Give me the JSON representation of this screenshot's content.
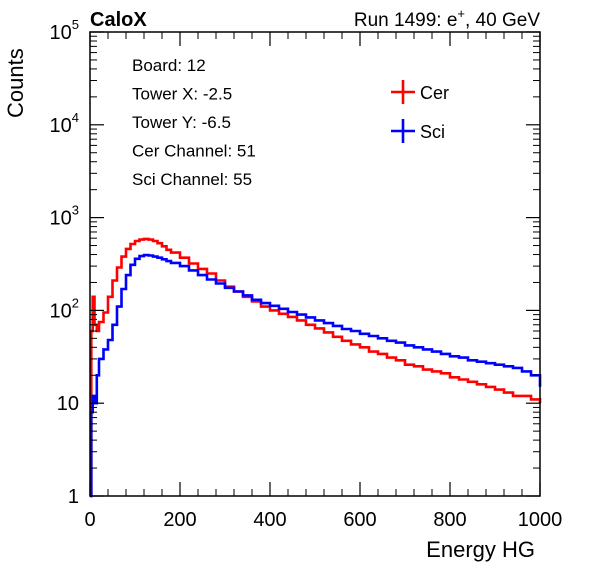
{
  "chart_data": {
    "type": "line",
    "title_left": "CaloX",
    "title_right_prefix": "Run 1499: e",
    "title_right_sup": "+",
    "title_right_suffix": ", 40 GeV",
    "xlabel": "Energy HG",
    "ylabel": "Counts",
    "xlim": [
      0,
      1000
    ],
    "ylim": [
      1,
      100000
    ],
    "yscale": "log",
    "grid": false,
    "x_ticks": [
      "0",
      "200",
      "400",
      "600",
      "800",
      "1000"
    ],
    "y_ticks": [
      {
        "base": "1",
        "exp": ""
      },
      {
        "base": "10",
        "exp": ""
      },
      {
        "base": "10",
        "exp": "2"
      },
      {
        "base": "10",
        "exp": "3"
      },
      {
        "base": "10",
        "exp": "4"
      },
      {
        "base": "10",
        "exp": "5"
      }
    ],
    "info_lines": [
      "Board: 12",
      "Tower X: -2.5",
      "Tower Y: -6.5",
      "Cer Channel: 51",
      "Sci Channel: 55"
    ],
    "legend_position": "top-right",
    "series": [
      {
        "name": "Cer",
        "color": "#ff0000",
        "x": [
          0,
          3,
          6,
          10,
          15,
          20,
          30,
          40,
          50,
          60,
          70,
          80,
          90,
          100,
          110,
          120,
          130,
          140,
          150,
          160,
          170,
          180,
          200,
          220,
          240,
          260,
          280,
          300,
          320,
          340,
          360,
          380,
          400,
          420,
          440,
          460,
          480,
          500,
          520,
          540,
          560,
          580,
          600,
          620,
          640,
          660,
          680,
          700,
          720,
          740,
          760,
          780,
          800,
          820,
          840,
          860,
          880,
          900,
          920,
          940,
          960,
          980,
          1000
        ],
        "y": [
          1,
          60,
          140,
          70,
          60,
          75,
          95,
          140,
          210,
          290,
          380,
          460,
          520,
          560,
          580,
          590,
          580,
          560,
          530,
          490,
          450,
          420,
          370,
          320,
          280,
          250,
          210,
          180,
          160,
          140,
          125,
          110,
          100,
          92,
          85,
          78,
          70,
          64,
          58,
          52,
          47,
          43,
          40,
          36,
          34,
          31,
          29,
          26,
          25,
          23,
          22,
          21,
          19,
          18,
          17,
          16,
          15,
          14,
          13,
          12,
          12,
          11,
          10
        ]
      },
      {
        "name": "Sci",
        "color": "#0000ff",
        "x": [
          0,
          3,
          6,
          10,
          15,
          20,
          30,
          40,
          50,
          60,
          70,
          80,
          90,
          100,
          110,
          120,
          130,
          140,
          150,
          160,
          170,
          180,
          200,
          220,
          240,
          260,
          280,
          300,
          320,
          340,
          360,
          380,
          400,
          420,
          440,
          460,
          480,
          500,
          520,
          540,
          560,
          580,
          600,
          620,
          640,
          660,
          680,
          700,
          720,
          740,
          760,
          780,
          800,
          820,
          840,
          860,
          880,
          900,
          920,
          940,
          960,
          980,
          1000
        ],
        "y": [
          1,
          8,
          12,
          10,
          20,
          30,
          38,
          48,
          70,
          110,
          170,
          240,
          310,
          360,
          385,
          395,
          390,
          380,
          370,
          355,
          340,
          325,
          300,
          270,
          240,
          215,
          195,
          175,
          160,
          145,
          130,
          120,
          112,
          104,
          96,
          90,
          84,
          78,
          73,
          68,
          63,
          60,
          56,
          53,
          50,
          47,
          45,
          42,
          40,
          38,
          36,
          34,
          32,
          31,
          29,
          28,
          27,
          26,
          25,
          24,
          22,
          20,
          15
        ]
      }
    ]
  }
}
